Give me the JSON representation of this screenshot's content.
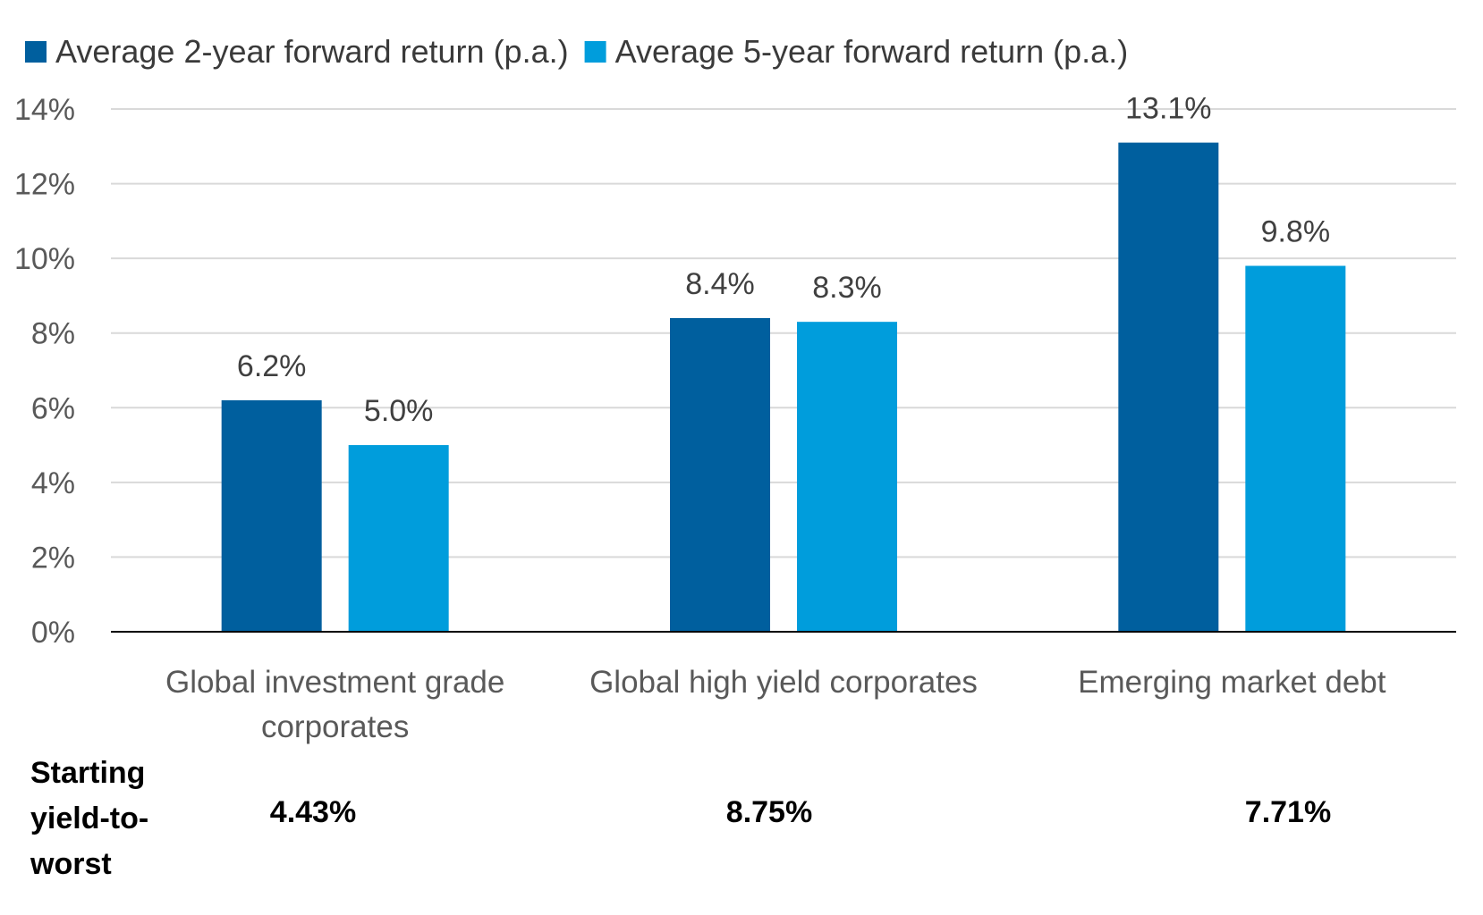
{
  "chart_data": {
    "type": "bar",
    "categories": [
      [
        "Global investment grade",
        "corporates"
      ],
      [
        "Global high yield corporates"
      ],
      [
        "Emerging market debt"
      ]
    ],
    "series": [
      {
        "name": "Average 2-year forward return (p.a.)",
        "color": "#005f9e",
        "values": [
          6.2,
          8.4,
          13.1
        ],
        "labels": [
          "6.2%",
          "8.4%",
          "13.1%"
        ]
      },
      {
        "name": "Average 5-year forward return (p.a.)",
        "color": "#009ddc",
        "values": [
          5.0,
          8.3,
          9.8
        ],
        "labels": [
          "5.0%",
          "8.3%",
          "9.8%"
        ]
      }
    ],
    "ylim": [
      0,
      14
    ],
    "yticks": [
      0,
      2,
      4,
      6,
      8,
      10,
      12,
      14
    ],
    "ytick_labels": [
      "0%",
      "2%",
      "4%",
      "6%",
      "8%",
      "10%",
      "12%",
      "14%"
    ],
    "grid": true,
    "legend_position": "top-left"
  },
  "yield_to_worst": {
    "heading_lines": [
      "Starting",
      "yield-to-",
      "worst"
    ],
    "values": [
      "4.43%",
      "8.75%",
      "7.71%"
    ]
  }
}
